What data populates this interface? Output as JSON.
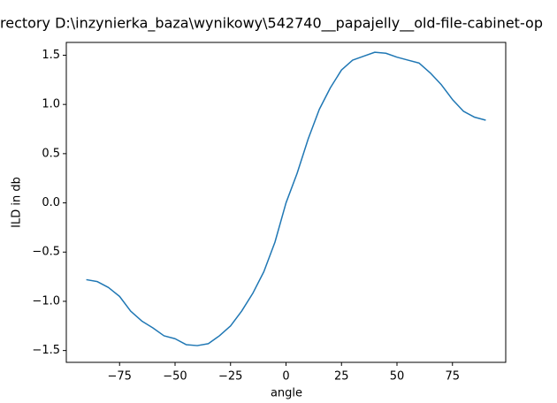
{
  "chart_data": {
    "type": "line",
    "title": "rectory D:\\inzynierka_baza\\wynikowy\\542740__papajelly__old-file-cabinet-op",
    "x_label": "angle",
    "y_label": "ILD in db",
    "x": [
      -90,
      -85,
      -80,
      -75,
      -70,
      -65,
      -60,
      -55,
      -50,
      -45,
      -40,
      -35,
      -30,
      -25,
      -20,
      -15,
      -10,
      -5,
      0,
      5,
      10,
      15,
      20,
      25,
      30,
      35,
      40,
      45,
      50,
      55,
      60,
      65,
      70,
      75,
      80,
      85,
      90
    ],
    "series": [
      {
        "color": "#1f77b4",
        "values": [
          -0.78,
          -0.8,
          -0.86,
          -0.95,
          -1.1,
          -1.2,
          -1.27,
          -1.35,
          -1.38,
          -1.44,
          -1.45,
          -1.43,
          -1.35,
          -1.25,
          -1.1,
          -0.92,
          -0.7,
          -0.4,
          0.0,
          0.3,
          0.65,
          0.95,
          1.17,
          1.35,
          1.45,
          1.49,
          1.53,
          1.52,
          1.48,
          1.45,
          1.42,
          1.32,
          1.2,
          1.05,
          0.93,
          0.87,
          0.84
        ]
      }
    ],
    "xlim": [
      -99,
      99
    ],
    "ylim": [
      -1.62,
      1.63
    ],
    "xticks": [
      {
        "value": -75,
        "label": "−75"
      },
      {
        "value": -50,
        "label": "−50"
      },
      {
        "value": -25,
        "label": "−25"
      },
      0,
      25,
      50,
      75
    ],
    "yticks": [
      {
        "value": -1.5,
        "label": "−1.5"
      },
      {
        "value": -1.0,
        "label": "−1.0"
      },
      {
        "value": -0.5,
        "label": "−0.5"
      },
      {
        "value": 0,
        "label": "0.0"
      },
      0.5,
      {
        "value": 1,
        "label": "1.0"
      },
      1.5
    ]
  }
}
